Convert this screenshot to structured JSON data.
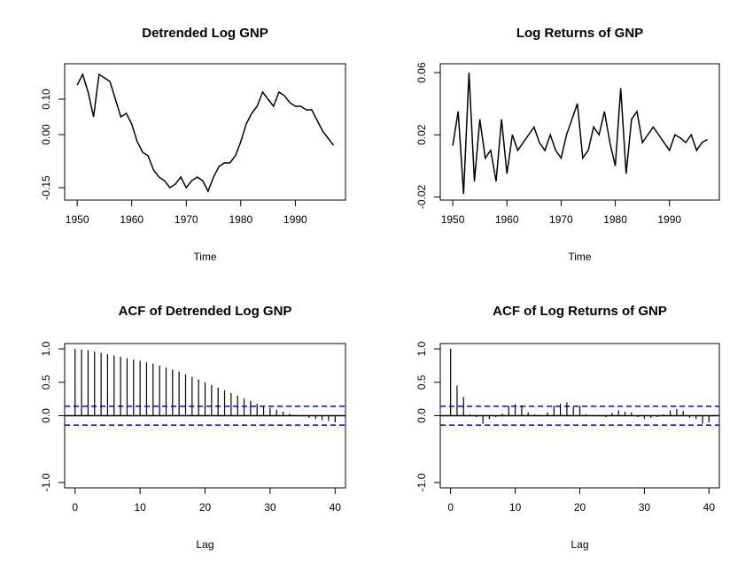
{
  "chart_data": [
    {
      "type": "line",
      "title": "Detrended Log GNP",
      "xlabel": "Time",
      "color": "#000000",
      "x": [
        1950,
        1951,
        1952,
        1953,
        1954,
        1955,
        1956,
        1957,
        1958,
        1959,
        1960,
        1961,
        1962,
        1963,
        1964,
        1965,
        1966,
        1967,
        1968,
        1969,
        1970,
        1971,
        1972,
        1973,
        1974,
        1975,
        1976,
        1977,
        1978,
        1979,
        1980,
        1981,
        1982,
        1983,
        1984,
        1985,
        1986,
        1987,
        1988,
        1989,
        1990,
        1991,
        1992,
        1993,
        1994,
        1995,
        1996,
        1997
      ],
      "values": [
        0.14,
        0.17,
        0.12,
        0.05,
        0.17,
        0.16,
        0.15,
        0.1,
        0.05,
        0.06,
        0.03,
        -0.02,
        -0.05,
        -0.06,
        -0.1,
        -0.12,
        -0.13,
        -0.15,
        -0.14,
        -0.12,
        -0.15,
        -0.13,
        -0.12,
        -0.13,
        -0.16,
        -0.12,
        -0.09,
        -0.08,
        -0.08,
        -0.06,
        -0.02,
        0.03,
        0.06,
        0.08,
        0.12,
        0.1,
        0.08,
        0.12,
        0.11,
        0.09,
        0.08,
        0.08,
        0.07,
        0.07,
        0.04,
        0.01,
        -0.01,
        -0.03
      ],
      "xlim": [
        1947.7,
        1999.2
      ],
      "ylim": [
        -0.185,
        0.2
      ],
      "xticks": [
        1950,
        1960,
        1970,
        1980,
        1990
      ],
      "yticks": [
        {
          "value": -0.15,
          "label": "-0.15"
        },
        {
          "value": 0,
          "label": "0.00"
        },
        {
          "value": 0.1,
          "label": "0.10"
        }
      ]
    },
    {
      "type": "line",
      "title": "Log Returns of GNP",
      "xlabel": "Time",
      "color": "#000000",
      "x": [
        1950,
        1951,
        1952,
        1953,
        1954,
        1955,
        1956,
        1957,
        1958,
        1959,
        1960,
        1961,
        1962,
        1963,
        1964,
        1965,
        1966,
        1967,
        1968,
        1969,
        1970,
        1971,
        1972,
        1973,
        1974,
        1975,
        1976,
        1977,
        1978,
        1979,
        1980,
        1981,
        1982,
        1983,
        1984,
        1985,
        1986,
        1987,
        1988,
        1989,
        1990,
        1991,
        1992,
        1993,
        1994,
        1995,
        1996,
        1997
      ],
      "values": [
        0.013,
        0.035,
        -0.018,
        0.06,
        -0.01,
        0.03,
        0.005,
        0.01,
        -0.01,
        0.03,
        -0.005,
        0.02,
        0.01,
        0.015,
        0.02,
        0.025,
        0.015,
        0.01,
        0.02,
        0.01,
        0.005,
        0.02,
        0.03,
        0.04,
        0.005,
        0.01,
        0.025,
        0.02,
        0.035,
        0.015,
        0.0,
        0.05,
        -0.005,
        0.03,
        0.035,
        0.015,
        0.02,
        0.025,
        0.02,
        0.015,
        0.01,
        0.02,
        0.018,
        0.015,
        0.02,
        0.01,
        0.015,
        0.017
      ],
      "xlim": [
        1947.7,
        1999.2
      ],
      "ylim": [
        -0.022,
        0.0657
      ],
      "xticks": [
        1950,
        1960,
        1970,
        1980,
        1990
      ],
      "yticks": [
        -0.02,
        0.02,
        0.06
      ]
    },
    {
      "type": "stem",
      "title": "ACF of Detrended Log GNP",
      "xlabel": "Lag",
      "color": "#000000",
      "ci": [
        -0.14,
        0.14
      ],
      "ci_color": "#0000ff",
      "x": [
        0,
        1,
        2,
        3,
        4,
        5,
        6,
        7,
        8,
        9,
        10,
        11,
        12,
        13,
        14,
        15,
        16,
        17,
        18,
        19,
        20,
        21,
        22,
        23,
        24,
        25,
        26,
        27,
        28,
        29,
        30,
        31,
        32,
        33,
        34,
        35,
        36,
        37,
        38,
        39,
        40
      ],
      "values": [
        1.0,
        0.99,
        0.98,
        0.96,
        0.94,
        0.92,
        0.9,
        0.88,
        0.86,
        0.84,
        0.82,
        0.8,
        0.78,
        0.75,
        0.72,
        0.69,
        0.66,
        0.62,
        0.58,
        0.54,
        0.5,
        0.46,
        0.42,
        0.38,
        0.34,
        0.3,
        0.26,
        0.22,
        0.18,
        0.15,
        0.12,
        0.09,
        0.06,
        0.03,
        0.01,
        -0.01,
        -0.03,
        -0.05,
        -0.07,
        -0.08,
        -0.1
      ],
      "xlim": [
        -1.6,
        41.6
      ],
      "ylim": [
        -1.08,
        1.08
      ],
      "xticks": [
        0,
        10,
        20,
        30,
        40
      ],
      "yticks": [
        {
          "value": -1,
          "label": "-1.0"
        },
        {
          "value": 0,
          "label": "0.0"
        },
        {
          "value": 0.5,
          "label": "0.5"
        },
        {
          "value": 1,
          "label": "1.0"
        }
      ]
    },
    {
      "type": "stem",
      "title": "ACF of Log Returns of GNP",
      "xlabel": "Lag",
      "color": "#000000",
      "ci": [
        -0.14,
        0.14
      ],
      "ci_color": "#0000ff",
      "x": [
        0,
        1,
        2,
        3,
        4,
        5,
        6,
        7,
        8,
        9,
        10,
        11,
        12,
        13,
        14,
        15,
        16,
        17,
        18,
        19,
        20,
        21,
        22,
        23,
        24,
        25,
        26,
        27,
        28,
        29,
        30,
        31,
        32,
        33,
        34,
        35,
        36,
        37,
        38,
        39,
        40
      ],
      "values": [
        1.0,
        0.45,
        0.28,
        0.02,
        -0.02,
        -0.12,
        -0.05,
        -0.02,
        0.03,
        0.15,
        0.17,
        0.15,
        0.05,
        0.02,
        -0.01,
        0.05,
        0.15,
        0.18,
        0.2,
        0.13,
        0.15,
        0.02,
        0.0,
        -0.01,
        -0.02,
        0.04,
        0.08,
        0.06,
        0.05,
        -0.02,
        -0.05,
        -0.03,
        -0.02,
        0.02,
        0.08,
        0.1,
        0.07,
        -0.03,
        -0.05,
        -0.12,
        -0.1
      ],
      "xlim": [
        -1.6,
        41.6
      ],
      "ylim": [
        -1.08,
        1.08
      ],
      "xticks": [
        0,
        10,
        20,
        30,
        40
      ],
      "yticks": [
        {
          "value": -1,
          "label": "-1.0"
        },
        {
          "value": 0,
          "label": "0.0"
        },
        {
          "value": 0.5,
          "label": "0.5"
        },
        {
          "value": 1,
          "label": "1.0"
        }
      ]
    }
  ]
}
